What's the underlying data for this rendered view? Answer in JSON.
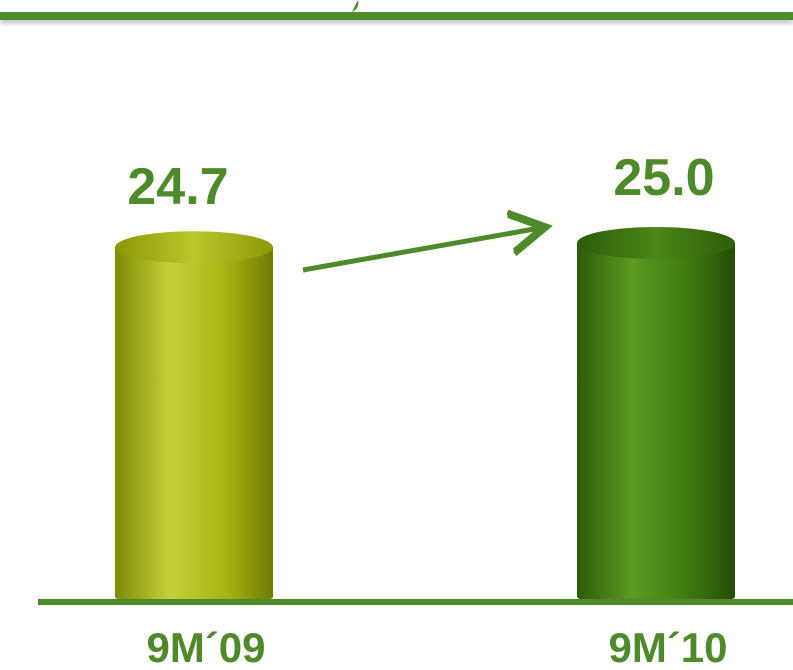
{
  "chart_data": {
    "type": "bar",
    "categories": [
      "9M´09",
      "9M´10"
    ],
    "values": [
      24.7,
      25.0
    ],
    "value_labels": [
      "24.7",
      "25.0"
    ],
    "title": "",
    "xlabel": "",
    "ylabel": "",
    "legend": "none",
    "grid": false
  },
  "colors": {
    "accent": "#4f8a2a",
    "bar_1": "#a7b815",
    "bar_2": "#3f7a10",
    "header_rule": "#4f8a2a"
  }
}
